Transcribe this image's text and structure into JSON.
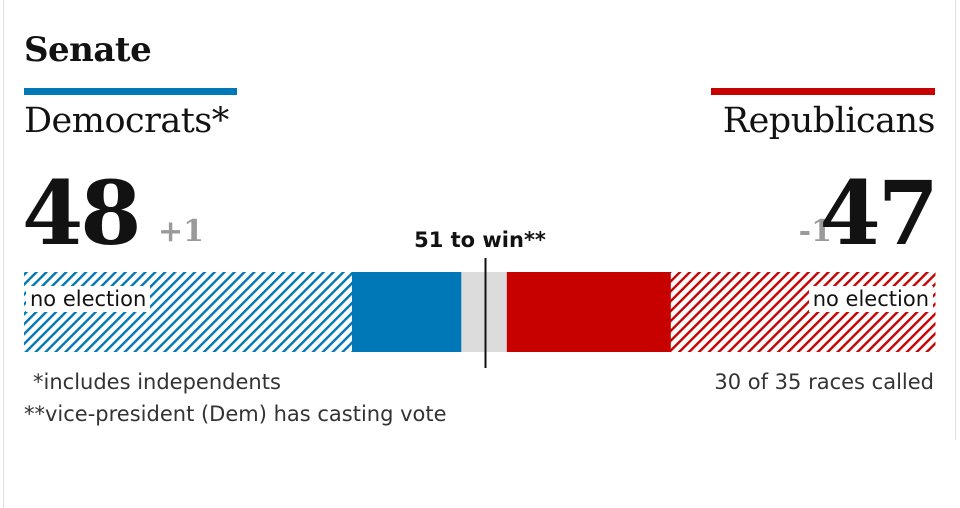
{
  "colors": {
    "democrat": "#0077b6",
    "republican": "#c70000",
    "uncalled": "#dcdcdc",
    "text": "#121212",
    "muted": "#9a9a9a"
  },
  "header": {
    "title": "Senate"
  },
  "parties": {
    "dem": {
      "label": "Democrats*",
      "seats": "48",
      "change": "+1"
    },
    "rep": {
      "label": "Republicans",
      "seats": "47",
      "change": "-1"
    }
  },
  "majority_label": "51 to win**",
  "bar_labels": {
    "dem": "no election",
    "rep": "no election"
  },
  "notes": {
    "independents": "*includes independents",
    "vice_president": "**vice-president (Dem) has casting vote",
    "races_called": "30 of 35 races called"
  },
  "chart_data": {
    "type": "bar",
    "total_seats": 100,
    "majority": 51,
    "segments": [
      {
        "party": "dem",
        "kind": "no election",
        "seats": 36
      },
      {
        "party": "dem",
        "kind": "won",
        "seats": 12
      },
      {
        "party": "none",
        "kind": "uncalled",
        "seats": 5
      },
      {
        "party": "rep",
        "kind": "won",
        "seats": 18
      },
      {
        "party": "rep",
        "kind": "no election",
        "seats": 29
      }
    ]
  }
}
